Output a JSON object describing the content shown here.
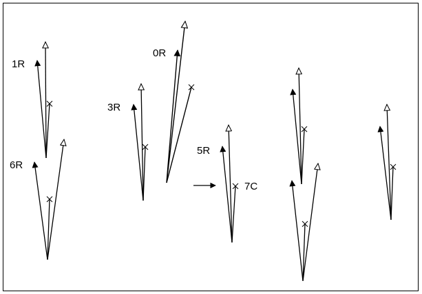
{
  "labels": {
    "l1R": "1R",
    "l6R": "6R",
    "l3R": "3R",
    "l0R": "0R",
    "l5R": "5R",
    "l7C": "7C"
  },
  "legend": {
    "filled_arrow": "filled-arrow-icon",
    "open_arrow": "open-triangle-arrow-icon",
    "cross": "cross-marker-icon",
    "pointer": "right-arrow-icon"
  },
  "colors": {
    "ink": "#000000",
    "background": "#ffffff"
  }
}
